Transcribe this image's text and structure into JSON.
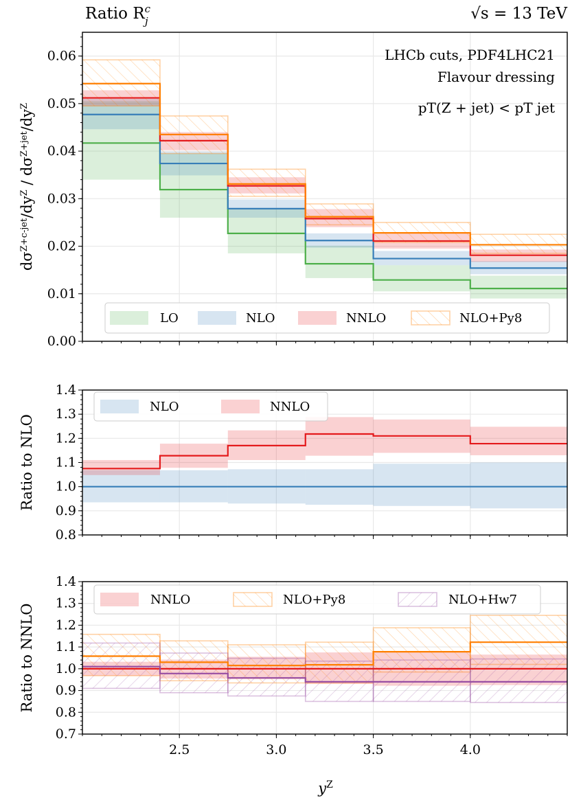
{
  "chart_data": {
    "type": "line",
    "title_left": "Ratio R",
    "title_left_sup": "c",
    "title_left_sub": "j",
    "title_right": "√s = 13 TeV",
    "annotations": [
      "LHCb cuts, PDF4LHC21",
      "Flavour dressing",
      "pT(Z + jet) < pT jet"
    ],
    "xlabel": "y",
    "xlabel_sup": "Z",
    "bin_edges": [
      2.0,
      2.4,
      2.75,
      3.15,
      3.5,
      4.0,
      4.5
    ],
    "xlim": [
      2.0,
      4.5
    ],
    "xticks": [
      "2.5",
      "3.0",
      "3.5",
      "4.0"
    ],
    "xtick_values": [
      2.5,
      3.0,
      3.5,
      4.0
    ],
    "colors": {
      "LO": "#4daf4a",
      "NLO": "#377eb8",
      "NNLO": "#e41a1c",
      "NLO+Py8": "#ff7f00",
      "NLO+Hw7": "#984ea3"
    },
    "panels": [
      {
        "id": "main",
        "ylabel": "dσ^{Z+c-jet}/dy^Z / dσ^{Z+jet}/dy^Z",
        "ylim": [
          0.0,
          0.065
        ],
        "yticks": [
          "0.00",
          "0.01",
          "0.02",
          "0.03",
          "0.04",
          "0.05",
          "0.06"
        ],
        "ytick_values": [
          0.0,
          0.01,
          0.02,
          0.03,
          0.04,
          0.05,
          0.06
        ],
        "legend": [
          "LO",
          "NLO",
          "NNLO",
          "NLO+Py8"
        ],
        "legend_position": "lower-center",
        "series": [
          {
            "name": "LO",
            "style": "band",
            "values": [
              0.0417,
              0.0319,
              0.0227,
              0.0163,
              0.0129,
              0.0111
            ],
            "low": [
              0.034,
              0.026,
              0.0185,
              0.0133,
              0.0105,
              0.009
            ],
            "high": [
              0.0505,
              0.0395,
              0.028,
              0.0201,
              0.016,
              0.0138
            ]
          },
          {
            "name": "NLO",
            "style": "band",
            "values": [
              0.0477,
              0.0374,
              0.0279,
              0.0212,
              0.0174,
              0.0154
            ],
            "low": [
              0.0446,
              0.0349,
              0.026,
              0.0197,
              0.016,
              0.0141
            ],
            "high": [
              0.051,
              0.0399,
              0.0298,
              0.0227,
              0.019,
              0.0169
            ]
          },
          {
            "name": "NNLO",
            "style": "band",
            "values": [
              0.0512,
              0.0422,
              0.0327,
              0.0258,
              0.0211,
              0.0181
            ],
            "low": [
              0.0495,
              0.0402,
              0.0311,
              0.024,
              0.0195,
              0.0167
            ],
            "high": [
              0.0528,
              0.044,
              0.0345,
              0.0278,
              0.0227,
              0.0193
            ]
          },
          {
            "name": "NLO+Py8",
            "style": "hatch",
            "values": [
              0.0542,
              0.0435,
              0.0331,
              0.0262,
              0.0228,
              0.0203
            ],
            "low": [
              0.0495,
              0.0395,
              0.0305,
              0.0245,
              0.0208,
              0.0185
            ],
            "high": [
              0.0592,
              0.0474,
              0.0362,
              0.0289,
              0.025,
              0.0225
            ]
          }
        ]
      },
      {
        "id": "ratio-nlo",
        "ylabel": "Ratio to NLO",
        "ylim": [
          0.8,
          1.4
        ],
        "yticks": [
          "0.8",
          "0.9",
          "1.0",
          "1.1",
          "1.2",
          "1.3",
          "1.4"
        ],
        "ytick_values": [
          0.8,
          0.9,
          1.0,
          1.1,
          1.2,
          1.3,
          1.4
        ],
        "legend": [
          "NLO",
          "NNLO"
        ],
        "legend_position": "upper-left",
        "series": [
          {
            "name": "NLO",
            "style": "band",
            "values": [
              1.0,
              1.0,
              1.0,
              1.0,
              1.0,
              1.0
            ],
            "low": [
              0.935,
              0.935,
              0.93,
              0.925,
              0.92,
              0.91
            ],
            "high": [
              1.068,
              1.068,
              1.072,
              1.072,
              1.095,
              1.1
            ]
          },
          {
            "name": "NNLO",
            "style": "band",
            "values": [
              1.075,
              1.128,
              1.17,
              1.218,
              1.21,
              1.178
            ],
            "low": [
              1.048,
              1.078,
              1.11,
              1.128,
              1.14,
              1.13
            ],
            "high": [
              1.11,
              1.178,
              1.233,
              1.288,
              1.278,
              1.248
            ]
          }
        ]
      },
      {
        "id": "ratio-nnlo",
        "ylabel": "Ratio to NNLO",
        "ylim": [
          0.7,
          1.4
        ],
        "yticks": [
          "0.7",
          "0.8",
          "0.9",
          "1.0",
          "1.1",
          "1.2",
          "1.3",
          "1.4"
        ],
        "ytick_values": [
          0.7,
          0.8,
          0.9,
          1.0,
          1.1,
          1.2,
          1.3,
          1.4
        ],
        "legend": [
          "NNLO",
          "NLO+Py8",
          "NLO+Hw7"
        ],
        "legend_position": "upper-center",
        "series": [
          {
            "name": "NNLO",
            "style": "band",
            "values": [
              1.0,
              1.0,
              1.0,
              1.0,
              1.0,
              1.0
            ],
            "low": [
              0.968,
              0.955,
              0.952,
              0.93,
              0.922,
              0.925
            ],
            "high": [
              1.032,
              1.042,
              1.055,
              1.075,
              1.075,
              1.065
            ]
          },
          {
            "name": "NLO+Py8",
            "style": "hatch",
            "values": [
              1.058,
              1.03,
              1.015,
              1.018,
              1.078,
              1.122
            ],
            "low": [
              0.968,
              0.945,
              0.935,
              0.935,
              0.985,
              1.02
            ],
            "high": [
              1.158,
              1.128,
              1.11,
              1.122,
              1.188,
              1.245
            ]
          },
          {
            "name": "NLO+Hw7",
            "style": "hatch",
            "values": [
              1.01,
              0.978,
              0.958,
              0.94,
              0.94,
              0.94
            ],
            "low": [
              0.91,
              0.89,
              0.875,
              0.85,
              0.85,
              0.845
            ],
            "high": [
              1.118,
              1.072,
              1.048,
              1.035,
              1.04,
              1.045
            ]
          }
        ]
      }
    ]
  }
}
